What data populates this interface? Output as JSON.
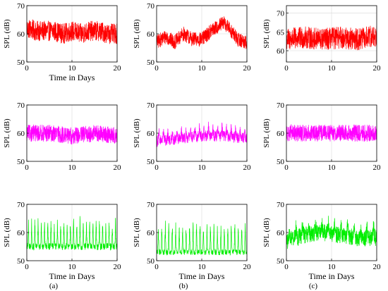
{
  "figure": {
    "panel_labels": [
      "(a)",
      "(b)",
      "(c)"
    ],
    "colors": {
      "red": "#ff0000",
      "magenta": "#ff00ff",
      "green": "#00ee00"
    }
  },
  "chart_data": [
    {
      "type": "line",
      "row": 0,
      "col": 0,
      "color": "#ff0000",
      "ylabel": "SPL (dB)",
      "xlabel": "Time in Days",
      "xlim": [
        0,
        20
      ],
      "ylim": [
        50,
        70
      ],
      "xticks": [
        0,
        10,
        20
      ],
      "yticks": [
        50,
        60,
        70
      ],
      "grid": true,
      "base": [
        [
          0,
          62
        ],
        [
          2,
          61
        ],
        [
          4,
          61
        ],
        [
          6,
          61
        ],
        [
          8,
          60
        ],
        [
          10,
          61
        ],
        [
          12,
          60
        ],
        [
          14,
          61
        ],
        [
          16,
          61
        ],
        [
          18,
          60
        ],
        [
          20,
          60
        ]
      ],
      "cycles": 0,
      "amp": 0,
      "noise": 3.6,
      "ymin_clip": 53,
      "ymax_clip": 69.5
    },
    {
      "type": "line",
      "row": 0,
      "col": 1,
      "color": "#ff0000",
      "ylabel": "SPL (dB)",
      "xlabel": "",
      "xlim": [
        0,
        20
      ],
      "ylim": [
        50,
        70
      ],
      "xticks": [
        0,
        10,
        20
      ],
      "yticks": [
        50,
        60,
        70
      ],
      "grid": true,
      "base": [
        [
          0,
          57
        ],
        [
          2,
          59
        ],
        [
          4,
          57
        ],
        [
          6,
          60
        ],
        [
          8,
          58
        ],
        [
          10,
          58
        ],
        [
          12,
          61
        ],
        [
          14,
          63
        ],
        [
          15,
          64
        ],
        [
          16,
          62
        ],
        [
          18,
          58
        ],
        [
          20,
          57
        ]
      ],
      "cycles": 0,
      "amp": 0,
      "noise": 2.6,
      "ymin_clip": 52,
      "ymax_clip": 69.5
    },
    {
      "type": "line",
      "row": 0,
      "col": 2,
      "color": "#ff0000",
      "ylabel": "SPL (dB)",
      "xlabel": "",
      "xlim": [
        0,
        20
      ],
      "ylim": [
        57,
        72
      ],
      "xticks": [
        0,
        10,
        20
      ],
      "yticks": [
        60,
        65,
        70
      ],
      "grid": true,
      "base": [
        [
          0,
          63
        ],
        [
          4,
          63.5
        ],
        [
          8,
          63
        ],
        [
          12,
          63.5
        ],
        [
          16,
          63
        ],
        [
          20,
          64
        ]
      ],
      "cycles": 0,
      "amp": 0,
      "noise": 3.0,
      "ymin_clip": 57.2,
      "ymax_clip": 71.8
    },
    {
      "type": "line",
      "row": 1,
      "col": 0,
      "color": "#ff00ff",
      "ylabel": "SPL (dB)",
      "xlabel": "",
      "xlim": [
        0,
        20
      ],
      "ylim": [
        50,
        70
      ],
      "xticks": [
        0,
        10,
        20
      ],
      "yticks": [
        50,
        60,
        70
      ],
      "grid": true,
      "base": [
        [
          0,
          60
        ],
        [
          5,
          60
        ],
        [
          10,
          59
        ],
        [
          15,
          60
        ],
        [
          20,
          59
        ]
      ],
      "cycles": 0,
      "amp": 0,
      "noise": 3.0,
      "ymin_clip": 54,
      "ymax_clip": 69.5
    },
    {
      "type": "line",
      "row": 1,
      "col": 1,
      "color": "#ff00ff",
      "ylabel": "SPL (dB)",
      "xlabel": "",
      "xlim": [
        0,
        20
      ],
      "ylim": [
        50,
        70
      ],
      "xticks": [
        0,
        10,
        20
      ],
      "yticks": [
        50,
        60,
        70
      ],
      "grid": true,
      "base": [
        [
          0,
          57
        ],
        [
          5,
          58
        ],
        [
          10,
          59
        ],
        [
          15,
          59
        ],
        [
          20,
          58
        ]
      ],
      "cycles": 20,
      "amp": 3.5,
      "noise": 2.0,
      "ymin_clip": 52,
      "ymax_clip": 68
    },
    {
      "type": "line",
      "row": 1,
      "col": 2,
      "color": "#ff00ff",
      "ylabel": "SPL (dB)",
      "xlabel": "",
      "xlim": [
        0,
        20
      ],
      "ylim": [
        50,
        70
      ],
      "xticks": [
        0,
        10,
        20
      ],
      "yticks": [
        50,
        60,
        70
      ],
      "grid": true,
      "base": [
        [
          0,
          60
        ],
        [
          5,
          60
        ],
        [
          10,
          60
        ],
        [
          15,
          60
        ],
        [
          20,
          60
        ]
      ],
      "cycles": 0,
      "amp": 0,
      "noise": 3.0,
      "ymin_clip": 53.5,
      "ymax_clip": 69.5
    },
    {
      "type": "line",
      "row": 2,
      "col": 0,
      "color": "#00ee00",
      "ylabel": "SPL (dB)",
      "xlabel": "Time in Days",
      "xlim": [
        0,
        20
      ],
      "ylim": [
        50,
        70
      ],
      "xticks": [
        0,
        10,
        20
      ],
      "yticks": [
        50,
        60,
        70
      ],
      "grid": true,
      "base": [
        [
          0,
          55
        ],
        [
          20,
          55
        ]
      ],
      "cycles": 28,
      "amp": 10,
      "noise": 1.2,
      "ymin_clip": 52,
      "ymax_clip": 68.5
    },
    {
      "type": "line",
      "row": 2,
      "col": 1,
      "color": "#00ee00",
      "ylabel": "SPL (dB)",
      "xlabel": "Time in Days",
      "xlim": [
        0,
        20
      ],
      "ylim": [
        50,
        70
      ],
      "xticks": [
        0,
        10,
        20
      ],
      "yticks": [
        50,
        60,
        70
      ],
      "grid": true,
      "base": [
        [
          0,
          53
        ],
        [
          20,
          53
        ]
      ],
      "cycles": 26,
      "amp": 11,
      "noise": 1.0,
      "ymin_clip": 52,
      "ymax_clip": 67.5
    },
    {
      "type": "line",
      "row": 2,
      "col": 2,
      "color": "#00ee00",
      "ylabel": "SPL (dB)",
      "xlabel": "Time in Days",
      "xlim": [
        0,
        20
      ],
      "ylim": [
        50,
        70
      ],
      "xticks": [
        0,
        10,
        20
      ],
      "yticks": [
        50,
        60,
        70
      ],
      "grid": true,
      "base": [
        [
          0,
          57
        ],
        [
          4,
          59
        ],
        [
          8,
          60
        ],
        [
          12,
          59
        ],
        [
          16,
          58
        ],
        [
          20,
          58
        ]
      ],
      "cycles": 14,
      "amp": 4,
      "noise": 3.0,
      "ymin_clip": 51,
      "ymax_clip": 70.5
    }
  ]
}
